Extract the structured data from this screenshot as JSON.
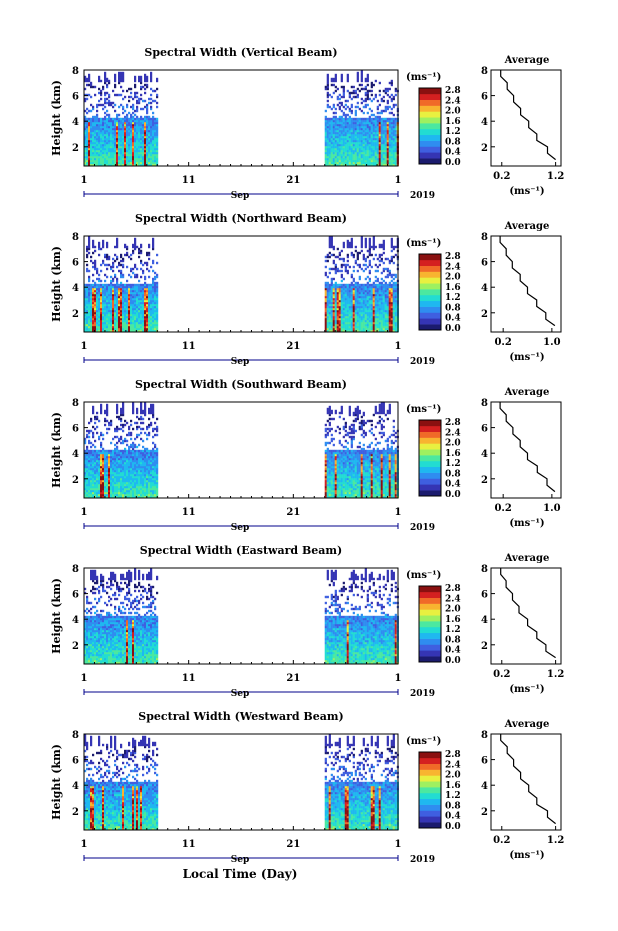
{
  "figure": {
    "x_axis_label": "Local Time (Day)",
    "month_label": "Sep",
    "year_label": "2019",
    "x_tick_labels": [
      "1",
      "11",
      "21",
      "1"
    ],
    "height_ticks": [
      "2",
      "4",
      "6",
      "8"
    ],
    "colorbar_unit": "(ms⁻¹)",
    "avg_title": "Average",
    "avg_unit": "(ms⁻¹)"
  },
  "panels": [
    {
      "title": "Spectral Width (Vertical Beam)",
      "ylabel": "Height (km)",
      "colorbar_ticks": [
        "0.0",
        "0.4",
        "0.8",
        "1.2",
        "1.6",
        "2.0",
        "2.4",
        "2.8"
      ],
      "avg_xlim": [
        0.0,
        1.3
      ],
      "avg_xticks": [
        "0.2",
        "1.2"
      ]
    },
    {
      "title": "Spectral Width (Northward Beam)",
      "ylabel": "Height (km)",
      "colorbar_ticks": [
        "0.0",
        "0.4",
        "0.8",
        "1.2",
        "1.6",
        "2.0",
        "2.4",
        "2.8"
      ],
      "avg_xlim": [
        0.0,
        1.15
      ],
      "avg_xticks": [
        "0.2",
        "1.0"
      ]
    },
    {
      "title": "Spectral Width (Southward Beam)",
      "ylabel": "Height (km)",
      "colorbar_ticks": [
        "0.0",
        "0.4",
        "0.8",
        "1.2",
        "1.6",
        "2.0",
        "2.4",
        "2.8"
      ],
      "avg_xlim": [
        0.0,
        1.15
      ],
      "avg_xticks": [
        "0.2",
        "1.0"
      ]
    },
    {
      "title": "Spectral Width (Eastward Beam)",
      "ylabel": "Height (km)",
      "colorbar_ticks": [
        "0.0",
        "0.4",
        "0.8",
        "1.2",
        "1.6",
        "2.0",
        "2.4",
        "2.8"
      ],
      "avg_xlim": [
        0.0,
        1.3
      ],
      "avg_xticks": [
        "0.2",
        "1.2"
      ]
    },
    {
      "title": "Spectral Width (Westward Beam)",
      "ylabel": "Height (km)",
      "colorbar_ticks": [
        "0.0",
        "0.4",
        "0.8",
        "1.2",
        "1.6",
        "2.0",
        "2.4",
        "2.8"
      ],
      "avg_xlim": [
        0.0,
        1.3
      ],
      "avg_xticks": [
        "0.2",
        "1.2"
      ]
    }
  ],
  "chart_data": [
    {
      "type": "heatmap",
      "title": "Spectral Width (Vertical Beam)",
      "ylabel": "Height (km)",
      "xlabel": "Sep 2019",
      "xlim_days": [
        1,
        31
      ],
      "ylim_km": [
        0.5,
        8.0
      ],
      "colorbar_range": [
        0.0,
        2.8
      ],
      "colorbar_unit": "ms⁻¹",
      "data_periods_days": [
        [
          1,
          8
        ],
        [
          24,
          31
        ]
      ],
      "average_profile": {
        "height_km": [
          1.0,
          2.0,
          3.0,
          4.0,
          5.0,
          6.0,
          7.0,
          8.0
        ],
        "width": [
          1.2,
          1.05,
          0.85,
          0.7,
          0.55,
          0.42,
          0.3,
          0.18
        ]
      }
    },
    {
      "type": "heatmap",
      "title": "Spectral Width (Northward Beam)",
      "ylabel": "Height (km)",
      "xlabel": "Sep 2019",
      "xlim_days": [
        1,
        31
      ],
      "ylim_km": [
        0.5,
        8.0
      ],
      "colorbar_range": [
        0.0,
        2.8
      ],
      "colorbar_unit": "ms⁻¹",
      "data_periods_days": [
        [
          1,
          8
        ],
        [
          24,
          31
        ]
      ],
      "average_profile": {
        "height_km": [
          1.0,
          2.0,
          3.0,
          4.0,
          5.0,
          6.0,
          7.0,
          8.0
        ],
        "width": [
          1.05,
          0.9,
          0.75,
          0.6,
          0.48,
          0.35,
          0.25,
          0.15
        ]
      }
    },
    {
      "type": "heatmap",
      "title": "Spectral Width (Southward Beam)",
      "ylabel": "Height (km)",
      "xlabel": "Sep 2019",
      "xlim_days": [
        1,
        31
      ],
      "ylim_km": [
        0.5,
        8.0
      ],
      "colorbar_range": [
        0.0,
        2.8
      ],
      "colorbar_unit": "ms⁻¹",
      "data_periods_days": [
        [
          1,
          8
        ],
        [
          24,
          31
        ]
      ],
      "average_profile": {
        "height_km": [
          1.0,
          2.0,
          3.0,
          4.0,
          5.0,
          6.0,
          7.0,
          8.0
        ],
        "width": [
          1.05,
          0.92,
          0.76,
          0.6,
          0.48,
          0.36,
          0.25,
          0.15
        ]
      }
    },
    {
      "type": "heatmap",
      "title": "Spectral Width (Eastward Beam)",
      "ylabel": "Height (km)",
      "xlabel": "Sep 2019",
      "xlim_days": [
        1,
        31
      ],
      "ylim_km": [
        0.5,
        8.0
      ],
      "colorbar_range": [
        0.0,
        2.8
      ],
      "colorbar_unit": "ms⁻¹",
      "data_periods_days": [
        [
          1,
          8
        ],
        [
          24,
          31
        ]
      ],
      "average_profile": {
        "height_km": [
          1.0,
          2.0,
          3.0,
          4.0,
          5.0,
          6.0,
          7.0,
          8.0
        ],
        "width": [
          1.2,
          1.02,
          0.85,
          0.68,
          0.52,
          0.4,
          0.28,
          0.18
        ]
      }
    },
    {
      "type": "heatmap",
      "title": "Spectral Width (Westward Beam)",
      "ylabel": "Height (km)",
      "xlabel": "Sep 2019",
      "xlim_days": [
        1,
        31
      ],
      "ylim_km": [
        0.5,
        8.0
      ],
      "colorbar_range": [
        0.0,
        2.8
      ],
      "colorbar_unit": "ms⁻¹",
      "data_periods_days": [
        [
          1,
          8
        ],
        [
          24,
          31
        ]
      ],
      "average_profile": {
        "height_km": [
          1.0,
          2.0,
          3.0,
          4.0,
          5.0,
          6.0,
          7.0,
          8.0
        ],
        "width": [
          1.2,
          1.05,
          0.85,
          0.7,
          0.55,
          0.42,
          0.3,
          0.18
        ]
      }
    }
  ],
  "colors": {
    "colormap": [
      "#1b1b6e",
      "#3535b4",
      "#3f5fe0",
      "#2f8df0",
      "#1fb8f0",
      "#22dcd2",
      "#4be8a0",
      "#9ef060",
      "#e8f040",
      "#f8b430",
      "#f06a28",
      "#d42020",
      "#8a1010"
    ]
  }
}
